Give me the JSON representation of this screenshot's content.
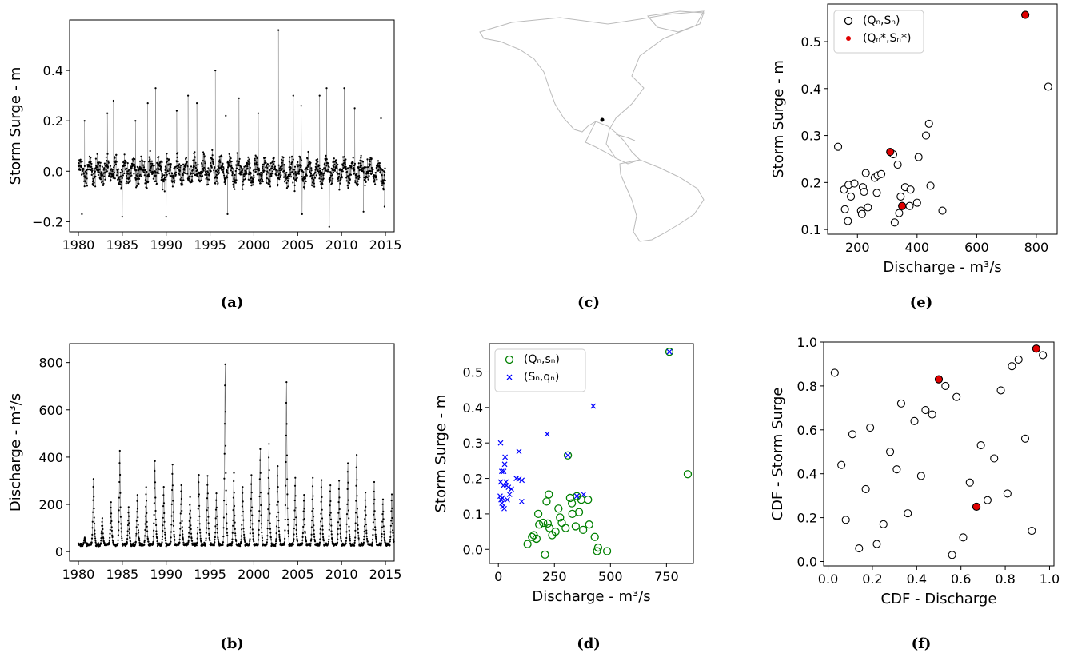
{
  "chart_data": [
    {
      "panel": "(a)",
      "type": "line",
      "xlabel": "",
      "ylabel": "Storm Surge - m",
      "xlim": [
        1979,
        2016
      ],
      "ylim": [
        -0.24,
        0.6
      ],
      "xticks": [
        "1980",
        "1985",
        "1990",
        "1995",
        "2000",
        "2005",
        "2010",
        "2015"
      ],
      "yticks": [
        "−0.2",
        "0.0",
        "0.2",
        "0.4"
      ],
      "x_range": [
        1980,
        2015
      ],
      "series": [
        {
          "band_low": -0.14,
          "band_high": 0.11,
          "peaks": [
            [
              1980.7,
              0.2
            ],
            [
              1983.3,
              0.23
            ],
            [
              1984,
              0.28
            ],
            [
              1986.5,
              0.2
            ],
            [
              1987.9,
              0.27
            ],
            [
              1988.8,
              0.33
            ],
            [
              1991.2,
              0.24
            ],
            [
              1992.5,
              0.3
            ],
            [
              1993.5,
              0.27
            ],
            [
              1995.6,
              0.4
            ],
            [
              1996.8,
              0.22
            ],
            [
              1998.3,
              0.29
            ],
            [
              2000.5,
              0.23
            ],
            [
              2002.8,
              0.56
            ],
            [
              2004.5,
              0.3
            ],
            [
              2005.4,
              0.26
            ],
            [
              2007.5,
              0.3
            ],
            [
              2008.3,
              0.33
            ],
            [
              2010.3,
              0.33
            ],
            [
              2011.5,
              0.25
            ],
            [
              2014.5,
              0.21
            ]
          ],
          "troughs": [
            [
              1980.4,
              -0.17
            ],
            [
              1985,
              -0.18
            ],
            [
              1990,
              -0.18
            ],
            [
              1997,
              -0.17
            ],
            [
              2005.5,
              -0.17
            ],
            [
              2008.6,
              -0.22
            ],
            [
              2012.5,
              -0.16
            ],
            [
              2014.9,
              -0.14
            ]
          ]
        }
      ]
    },
    {
      "panel": "(b)",
      "type": "line",
      "xlabel": "",
      "ylabel": "Discharge - m³/s",
      "xlim": [
        1979,
        2016
      ],
      "ylim": [
        -40,
        880
      ],
      "xticks": [
        "1980",
        "1985",
        "1990",
        "1995",
        "2000",
        "2005",
        "2010",
        "2015"
      ],
      "yticks": [
        "0",
        "200",
        "400",
        "600",
        "800"
      ],
      "x_range": [
        1980,
        2015
      ],
      "series": [
        {
          "base": 30,
          "annual_peaks": [
            60,
            325,
            150,
            220,
            450,
            200,
            250,
            290,
            410,
            285,
            390,
            300,
            240,
            345,
            340,
            260,
            840,
            350,
            290,
            340,
            460,
            480,
            380,
            760,
            330,
            250,
            330,
            320,
            300,
            315,
            400,
            430,
            260,
            305,
            235,
            255
          ]
        }
      ]
    },
    {
      "panel": "(c)",
      "type": "map",
      "points": [
        {
          "lon": -94,
          "lat": 18
        }
      ]
    },
    {
      "panel": "(d)",
      "type": "scatter",
      "xlabel": "Discharge - m³/s",
      "ylabel": "Storm Surge - m",
      "xlim": [
        -40,
        870
      ],
      "ylim": [
        -0.04,
        0.58
      ],
      "xticks": [
        0,
        250,
        500,
        750
      ],
      "yticks": [
        "0.0",
        "0.1",
        "0.2",
        "0.3",
        "0.4",
        "0.5"
      ],
      "legend_position": "top-left",
      "series": [
        {
          "name": "(Qₙ,sₙ)",
          "marker": "open-circle",
          "color": "#008000",
          "points": [
            [
              763,
              0.557
            ],
            [
              310,
              0.265
            ],
            [
              350,
              0.15
            ],
            [
              845,
              0.212
            ],
            [
              130,
              0.015
            ],
            [
              150,
              0.035
            ],
            [
              158,
              0.04
            ],
            [
              170,
              0.03
            ],
            [
              178,
              0.1
            ],
            [
              182,
              0.07
            ],
            [
              200,
              0.075
            ],
            [
              208,
              -0.015
            ],
            [
              215,
              0.135
            ],
            [
              220,
              0.073
            ],
            [
              225,
              0.155
            ],
            [
              228,
              0.06
            ],
            [
              240,
              0.04
            ],
            [
              255,
              0.05
            ],
            [
              268,
              0.115
            ],
            [
              275,
              0.09
            ],
            [
              283,
              0.075
            ],
            [
              300,
              0.06
            ],
            [
              320,
              0.145
            ],
            [
              328,
              0.13
            ],
            [
              330,
              0.1
            ],
            [
              345,
              0.065
            ],
            [
              360,
              0.105
            ],
            [
              370,
              0.14
            ],
            [
              378,
              0.055
            ],
            [
              400,
              0.14
            ],
            [
              405,
              0.07
            ],
            [
              430,
              0.035
            ],
            [
              440,
              -0.005
            ],
            [
              445,
              0.005
            ],
            [
              485,
              -0.005
            ]
          ]
        },
        {
          "name": "(Sₙ,qₙ)",
          "marker": "x",
          "color": "#0000ff",
          "points": [
            [
              763,
              0.557
            ],
            [
              310,
              0.265
            ],
            [
              350,
              0.15
            ],
            [
              423,
              0.404
            ],
            [
              218,
              0.325
            ],
            [
              10,
              0.3
            ],
            [
              92,
              0.276
            ],
            [
              30,
              0.26
            ],
            [
              28,
              0.24
            ],
            [
              15,
              0.22
            ],
            [
              24,
              0.22
            ],
            [
              22,
              0.18
            ],
            [
              36,
              0.18
            ],
            [
              45,
              0.175
            ],
            [
              58,
              0.17
            ],
            [
              80,
              0.2
            ],
            [
              92,
              0.198
            ],
            [
              105,
              0.195
            ],
            [
              10,
              0.19
            ],
            [
              34,
              0.19
            ],
            [
              50,
              0.155
            ],
            [
              12,
              0.14
            ],
            [
              16,
              0.13
            ],
            [
              20,
              0.12
            ],
            [
              26,
              0.115
            ],
            [
              40,
              0.14
            ],
            [
              104,
              0.135
            ],
            [
              380,
              0.155
            ],
            [
              8,
              0.15
            ],
            [
              18,
              0.145
            ]
          ]
        }
      ]
    },
    {
      "panel": "(e)",
      "type": "scatter",
      "xlabel": "Discharge - m³/s",
      "ylabel": "Storm Surge - m",
      "xlim": [
        100,
        870
      ],
      "ylim": [
        0.09,
        0.58
      ],
      "xticks": [
        200,
        400,
        600,
        800
      ],
      "yticks": [
        "0.1",
        "0.2",
        "0.3",
        "0.4",
        "0.5"
      ],
      "legend_position": "top-left",
      "series": [
        {
          "name": "(Qₙ,Sₙ)",
          "marker": "open-circle",
          "color": "#000000",
          "points": [
            [
              135,
              0.276
            ],
            [
              155,
              0.185
            ],
            [
              158,
              0.143
            ],
            [
              168,
              0.118
            ],
            [
              170,
              0.195
            ],
            [
              178,
              0.17
            ],
            [
              190,
              0.198
            ],
            [
              212,
              0.14
            ],
            [
              215,
              0.133
            ],
            [
              218,
              0.19
            ],
            [
              222,
              0.18
            ],
            [
              228,
              0.22
            ],
            [
              235,
              0.147
            ],
            [
              258,
              0.21
            ],
            [
              265,
              0.178
            ],
            [
              268,
              0.215
            ],
            [
              280,
              0.218
            ],
            [
              310,
              0.265
            ],
            [
              320,
              0.26
            ],
            [
              325,
              0.115
            ],
            [
              335,
              0.238
            ],
            [
              340,
              0.135
            ],
            [
              345,
              0.17
            ],
            [
              350,
              0.15
            ],
            [
              360,
              0.19
            ],
            [
              375,
              0.15
            ],
            [
              378,
              0.185
            ],
            [
              400,
              0.157
            ],
            [
              405,
              0.254
            ],
            [
              430,
              0.3
            ],
            [
              440,
              0.325
            ],
            [
              445,
              0.193
            ],
            [
              485,
              0.14
            ],
            [
              763,
              0.557
            ],
            [
              840,
              0.404
            ]
          ]
        },
        {
          "name": "(Qₙ*,Sₙ*)",
          "marker": "filled-circle",
          "color": "#e00000",
          "points": [
            [
              763,
              0.557
            ],
            [
              310,
              0.265
            ],
            [
              350,
              0.15
            ]
          ]
        }
      ]
    },
    {
      "panel": "(f)",
      "type": "scatter",
      "xlabel": "CDF - Discharge",
      "ylabel": "CDF - Storm Surge",
      "xlim": [
        -0.02,
        1.02
      ],
      "ylim": [
        -0.02,
        1.0
      ],
      "xticks": [
        "0.0",
        "0.2",
        "0.4",
        "0.6",
        "0.8",
        "1.0"
      ],
      "yticks": [
        "0.0",
        "0.2",
        "0.4",
        "0.6",
        "0.8",
        "1.0"
      ],
      "series": [
        {
          "name": "",
          "marker": "open-circle",
          "color": "#000000",
          "points": [
            [
              0.03,
              0.86
            ],
            [
              0.06,
              0.44
            ],
            [
              0.08,
              0.19
            ],
            [
              0.11,
              0.58
            ],
            [
              0.14,
              0.06
            ],
            [
              0.17,
              0.33
            ],
            [
              0.19,
              0.61
            ],
            [
              0.22,
              0.08
            ],
            [
              0.25,
              0.17
            ],
            [
              0.28,
              0.5
            ],
            [
              0.31,
              0.42
            ],
            [
              0.33,
              0.72
            ],
            [
              0.36,
              0.22
            ],
            [
              0.39,
              0.64
            ],
            [
              0.42,
              0.39
            ],
            [
              0.44,
              0.69
            ],
            [
              0.47,
              0.67
            ],
            [
              0.5,
              0.83
            ],
            [
              0.53,
              0.8
            ],
            [
              0.56,
              0.03
            ],
            [
              0.58,
              0.75
            ],
            [
              0.61,
              0.11
            ],
            [
              0.64,
              0.36
            ],
            [
              0.67,
              0.25
            ],
            [
              0.69,
              0.53
            ],
            [
              0.72,
              0.28
            ],
            [
              0.75,
              0.47
            ],
            [
              0.78,
              0.78
            ],
            [
              0.81,
              0.31
            ],
            [
              0.83,
              0.89
            ],
            [
              0.86,
              0.92
            ],
            [
              0.89,
              0.56
            ],
            [
              0.92,
              0.14
            ],
            [
              0.94,
              0.97
            ],
            [
              0.97,
              0.94
            ]
          ]
        },
        {
          "name": "",
          "marker": "filled-circle",
          "color": "#e00000",
          "points": [
            [
              0.5,
              0.83
            ],
            [
              0.67,
              0.25
            ],
            [
              0.94,
              0.97
            ]
          ]
        }
      ]
    }
  ],
  "panel_labels": [
    "(a)",
    "(b)",
    "(c)",
    "(d)",
    "(e)",
    "(f)"
  ],
  "legend_d": {
    "green": "(Qₙ,sₙ)",
    "blue": "(Sₙ,qₙ)"
  },
  "legend_e": {
    "black": "(Qₙ,Sₙ)",
    "red": "(Qₙ*,Sₙ*)"
  }
}
